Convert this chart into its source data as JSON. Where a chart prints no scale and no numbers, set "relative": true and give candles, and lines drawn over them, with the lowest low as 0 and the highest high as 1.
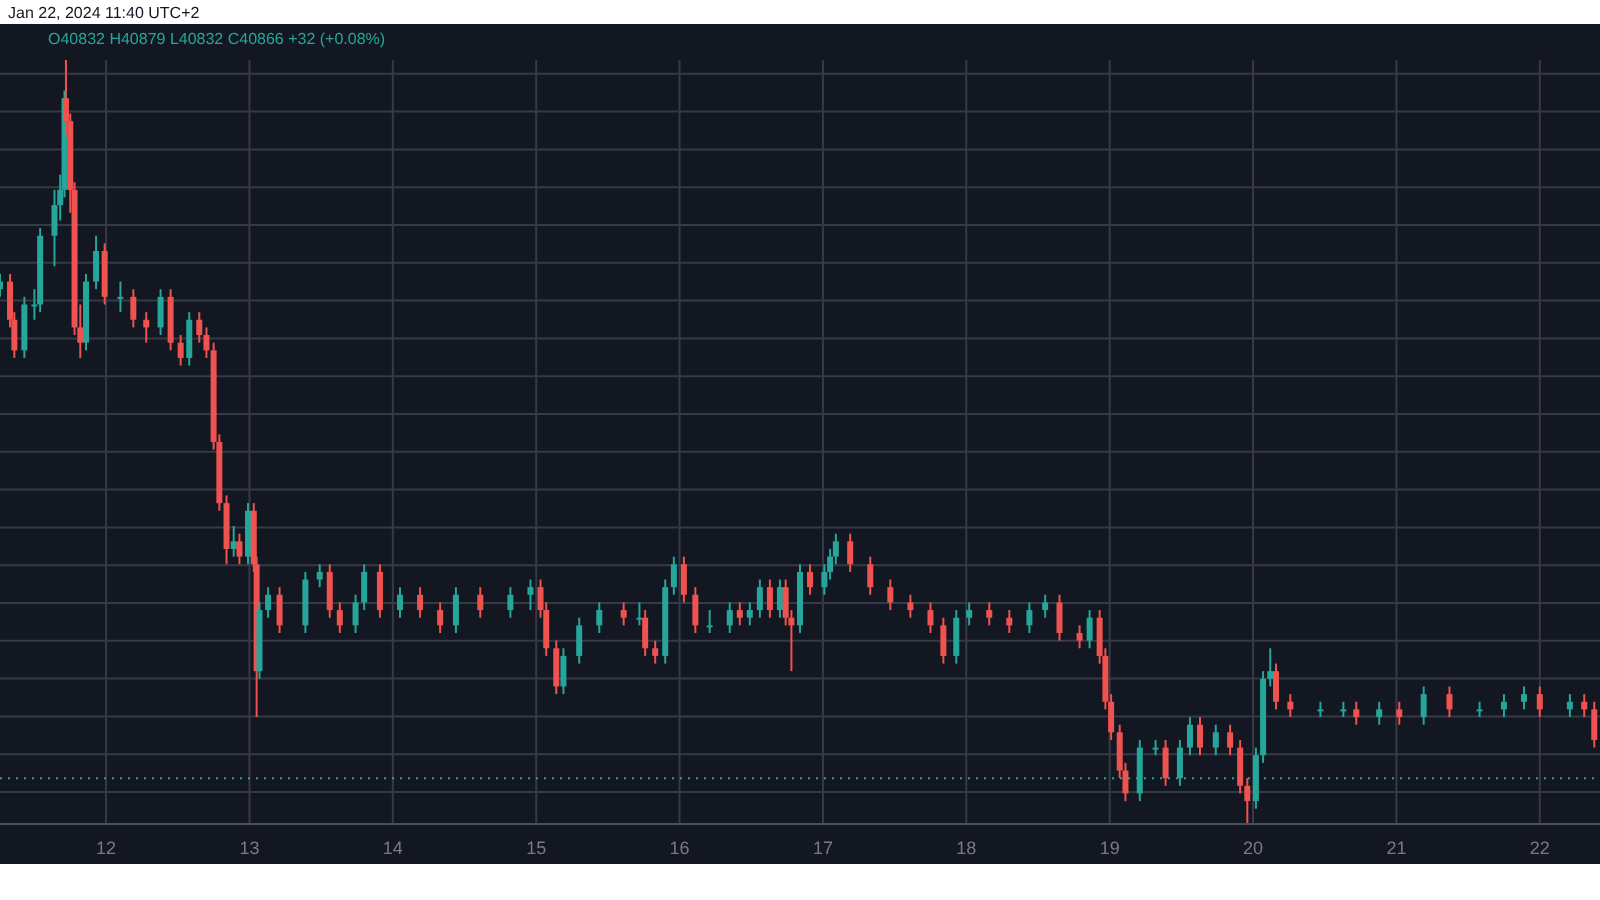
{
  "chart_data": {
    "type": "candlestick",
    "title": "Jan 22, 2024 11:40 UTC+2",
    "subtitle": "O40832 H40879 L40832 C40866 +32 (+0.08%)",
    "relative": true,
    "grid": true,
    "legend": false,
    "xlim": [
      11.26,
      22.42
    ],
    "xticks": [
      12,
      13,
      14,
      15,
      16,
      17,
      18,
      19,
      20,
      21,
      22
    ],
    "ref_lines": [
      {
        "axis": "y",
        "value": 0.06,
        "color": "#26a69a",
        "line_style": "dotted"
      }
    ],
    "x": [
      11.26,
      11.33,
      11.36,
      11.43,
      11.5,
      11.54,
      11.64,
      11.68,
      11.71,
      11.72,
      11.75,
      11.78,
      11.82,
      11.86,
      11.93,
      11.99,
      12.1,
      12.19,
      12.28,
      12.38,
      12.45,
      12.52,
      12.58,
      12.65,
      12.7,
      12.75,
      12.79,
      12.84,
      12.89,
      12.93,
      12.99,
      13.03,
      13.05,
      13.07,
      13.13,
      13.21,
      13.39,
      13.49,
      13.56,
      13.63,
      13.74,
      13.8,
      13.91,
      14.05,
      14.19,
      14.33,
      14.44,
      14.61,
      14.82,
      14.96,
      15.03,
      15.07,
      15.14,
      15.19,
      15.3,
      15.44,
      15.61,
      15.72,
      15.76,
      15.83,
      15.9,
      15.96,
      16.03,
      16.11,
      16.21,
      16.35,
      16.42,
      16.49,
      16.56,
      16.63,
      16.7,
      16.74,
      16.78,
      16.84,
      16.91,
      17.01,
      17.05,
      17.09,
      17.19,
      17.33,
      17.47,
      17.61,
      17.75,
      17.84,
      17.93,
      18.02,
      18.16,
      18.3,
      18.44,
      18.55,
      18.65,
      18.79,
      18.86,
      18.93,
      18.97,
      19.01,
      19.07,
      19.11,
      19.21,
      19.32,
      19.39,
      19.49,
      19.56,
      19.63,
      19.74,
      19.84,
      19.91,
      19.96,
      20.02,
      20.07,
      20.12,
      20.16,
      20.26,
      20.47,
      20.63,
      20.72,
      20.88,
      21.02,
      21.19,
      21.37,
      21.58,
      21.75,
      21.89,
      22.0,
      22.21,
      22.31,
      22.38
    ],
    "ohlc": [
      [
        0.7,
        0.72,
        0.69,
        0.71
      ],
      [
        0.71,
        0.72,
        0.65,
        0.66
      ],
      [
        0.66,
        0.67,
        0.61,
        0.62
      ],
      [
        0.62,
        0.69,
        0.61,
        0.68
      ],
      [
        0.68,
        0.7,
        0.66,
        0.68
      ],
      [
        0.68,
        0.78,
        0.67,
        0.77
      ],
      [
        0.77,
        0.83,
        0.73,
        0.81
      ],
      [
        0.81,
        0.85,
        0.79,
        0.83
      ],
      [
        0.83,
        0.96,
        0.82,
        0.95
      ],
      [
        0.95,
        1.0,
        0.9,
        0.92
      ],
      [
        0.92,
        0.93,
        0.8,
        0.83
      ],
      [
        0.83,
        0.84,
        0.64,
        0.65
      ],
      [
        0.65,
        0.68,
        0.61,
        0.63
      ],
      [
        0.63,
        0.72,
        0.62,
        0.71
      ],
      [
        0.71,
        0.77,
        0.7,
        0.75
      ],
      [
        0.75,
        0.76,
        0.68,
        0.69
      ],
      [
        0.69,
        0.71,
        0.67,
        0.69
      ],
      [
        0.69,
        0.7,
        0.65,
        0.66
      ],
      [
        0.66,
        0.67,
        0.63,
        0.65
      ],
      [
        0.65,
        0.7,
        0.64,
        0.69
      ],
      [
        0.69,
        0.7,
        0.62,
        0.63
      ],
      [
        0.63,
        0.64,
        0.6,
        0.61
      ],
      [
        0.61,
        0.67,
        0.6,
        0.66
      ],
      [
        0.66,
        0.67,
        0.63,
        0.64
      ],
      [
        0.64,
        0.65,
        0.61,
        0.62
      ],
      [
        0.62,
        0.63,
        0.49,
        0.5
      ],
      [
        0.5,
        0.51,
        0.41,
        0.42
      ],
      [
        0.42,
        0.43,
        0.34,
        0.36
      ],
      [
        0.36,
        0.39,
        0.35,
        0.37
      ],
      [
        0.37,
        0.38,
        0.34,
        0.35
      ],
      [
        0.35,
        0.42,
        0.34,
        0.41
      ],
      [
        0.41,
        0.42,
        0.33,
        0.34
      ],
      [
        0.34,
        0.35,
        0.14,
        0.2
      ],
      [
        0.2,
        0.29,
        0.19,
        0.28
      ],
      [
        0.28,
        0.31,
        0.27,
        0.3
      ],
      [
        0.3,
        0.31,
        0.25,
        0.26
      ],
      [
        0.26,
        0.33,
        0.25,
        0.32
      ],
      [
        0.32,
        0.34,
        0.31,
        0.33
      ],
      [
        0.33,
        0.34,
        0.27,
        0.28
      ],
      [
        0.28,
        0.29,
        0.25,
        0.26
      ],
      [
        0.26,
        0.3,
        0.25,
        0.29
      ],
      [
        0.29,
        0.34,
        0.28,
        0.33
      ],
      [
        0.33,
        0.34,
        0.27,
        0.28
      ],
      [
        0.28,
        0.31,
        0.27,
        0.3
      ],
      [
        0.3,
        0.31,
        0.27,
        0.28
      ],
      [
        0.28,
        0.29,
        0.25,
        0.26
      ],
      [
        0.26,
        0.31,
        0.25,
        0.3
      ],
      [
        0.3,
        0.31,
        0.27,
        0.28
      ],
      [
        0.28,
        0.31,
        0.27,
        0.3
      ],
      [
        0.3,
        0.32,
        0.28,
        0.31
      ],
      [
        0.31,
        0.32,
        0.27,
        0.28
      ],
      [
        0.28,
        0.29,
        0.22,
        0.23
      ],
      [
        0.23,
        0.24,
        0.17,
        0.18
      ],
      [
        0.18,
        0.23,
        0.17,
        0.22
      ],
      [
        0.22,
        0.27,
        0.21,
        0.26
      ],
      [
        0.26,
        0.29,
        0.25,
        0.28
      ],
      [
        0.28,
        0.29,
        0.26,
        0.27
      ],
      [
        0.27,
        0.29,
        0.26,
        0.27
      ],
      [
        0.27,
        0.28,
        0.22,
        0.23
      ],
      [
        0.23,
        0.24,
        0.21,
        0.22
      ],
      [
        0.22,
        0.32,
        0.21,
        0.31
      ],
      [
        0.31,
        0.35,
        0.3,
        0.34
      ],
      [
        0.34,
        0.35,
        0.29,
        0.3
      ],
      [
        0.3,
        0.31,
        0.25,
        0.26
      ],
      [
        0.26,
        0.28,
        0.25,
        0.26
      ],
      [
        0.26,
        0.29,
        0.25,
        0.28
      ],
      [
        0.28,
        0.29,
        0.26,
        0.27
      ],
      [
        0.27,
        0.29,
        0.26,
        0.28
      ],
      [
        0.28,
        0.32,
        0.27,
        0.31
      ],
      [
        0.31,
        0.32,
        0.27,
        0.28
      ],
      [
        0.28,
        0.32,
        0.27,
        0.31
      ],
      [
        0.31,
        0.32,
        0.26,
        0.27
      ],
      [
        0.27,
        0.28,
        0.2,
        0.26
      ],
      [
        0.26,
        0.34,
        0.25,
        0.33
      ],
      [
        0.33,
        0.34,
        0.3,
        0.31
      ],
      [
        0.31,
        0.34,
        0.3,
        0.33
      ],
      [
        0.33,
        0.36,
        0.32,
        0.35
      ],
      [
        0.35,
        0.38,
        0.34,
        0.37
      ],
      [
        0.37,
        0.38,
        0.33,
        0.34
      ],
      [
        0.34,
        0.35,
        0.3,
        0.31
      ],
      [
        0.31,
        0.32,
        0.28,
        0.29
      ],
      [
        0.29,
        0.3,
        0.27,
        0.28
      ],
      [
        0.28,
        0.29,
        0.25,
        0.26
      ],
      [
        0.26,
        0.27,
        0.21,
        0.22
      ],
      [
        0.22,
        0.28,
        0.21,
        0.27
      ],
      [
        0.27,
        0.29,
        0.26,
        0.28
      ],
      [
        0.28,
        0.29,
        0.26,
        0.27
      ],
      [
        0.27,
        0.28,
        0.25,
        0.26
      ],
      [
        0.26,
        0.29,
        0.25,
        0.28
      ],
      [
        0.28,
        0.3,
        0.27,
        0.29
      ],
      [
        0.29,
        0.3,
        0.24,
        0.25
      ],
      [
        0.25,
        0.26,
        0.23,
        0.24
      ],
      [
        0.24,
        0.28,
        0.23,
        0.27
      ],
      [
        0.27,
        0.28,
        0.21,
        0.22
      ],
      [
        0.22,
        0.23,
        0.15,
        0.16
      ],
      [
        0.16,
        0.17,
        0.11,
        0.12
      ],
      [
        0.12,
        0.13,
        0.06,
        0.07
      ],
      [
        0.07,
        0.08,
        0.03,
        0.04
      ],
      [
        0.04,
        0.11,
        0.03,
        0.1
      ],
      [
        0.1,
        0.11,
        0.09,
        0.1
      ],
      [
        0.1,
        0.11,
        0.05,
        0.06
      ],
      [
        0.06,
        0.11,
        0.05,
        0.1
      ],
      [
        0.1,
        0.14,
        0.09,
        0.13
      ],
      [
        0.13,
        0.14,
        0.09,
        0.1
      ],
      [
        0.1,
        0.13,
        0.09,
        0.12
      ],
      [
        0.12,
        0.13,
        0.09,
        0.1
      ],
      [
        0.1,
        0.11,
        0.04,
        0.05
      ],
      [
        0.05,
        0.06,
        0.0,
        0.03
      ],
      [
        0.03,
        0.1,
        0.02,
        0.09
      ],
      [
        0.09,
        0.2,
        0.08,
        0.19
      ],
      [
        0.19,
        0.23,
        0.18,
        0.2
      ],
      [
        0.2,
        0.21,
        0.15,
        0.16
      ],
      [
        0.16,
        0.17,
        0.14,
        0.15
      ],
      [
        0.15,
        0.16,
        0.14,
        0.15
      ],
      [
        0.15,
        0.16,
        0.14,
        0.15
      ],
      [
        0.15,
        0.16,
        0.13,
        0.14
      ],
      [
        0.14,
        0.16,
        0.13,
        0.15
      ],
      [
        0.15,
        0.16,
        0.13,
        0.14
      ],
      [
        0.14,
        0.18,
        0.13,
        0.17
      ],
      [
        0.17,
        0.18,
        0.14,
        0.15
      ],
      [
        0.15,
        0.16,
        0.14,
        0.15
      ],
      [
        0.15,
        0.17,
        0.14,
        0.16
      ],
      [
        0.16,
        0.18,
        0.15,
        0.17
      ],
      [
        0.17,
        0.18,
        0.14,
        0.15
      ],
      [
        0.15,
        0.17,
        0.14,
        0.16
      ],
      [
        0.16,
        0.17,
        0.14,
        0.15
      ],
      [
        0.15,
        0.16,
        0.1,
        0.11
      ]
    ]
  }
}
